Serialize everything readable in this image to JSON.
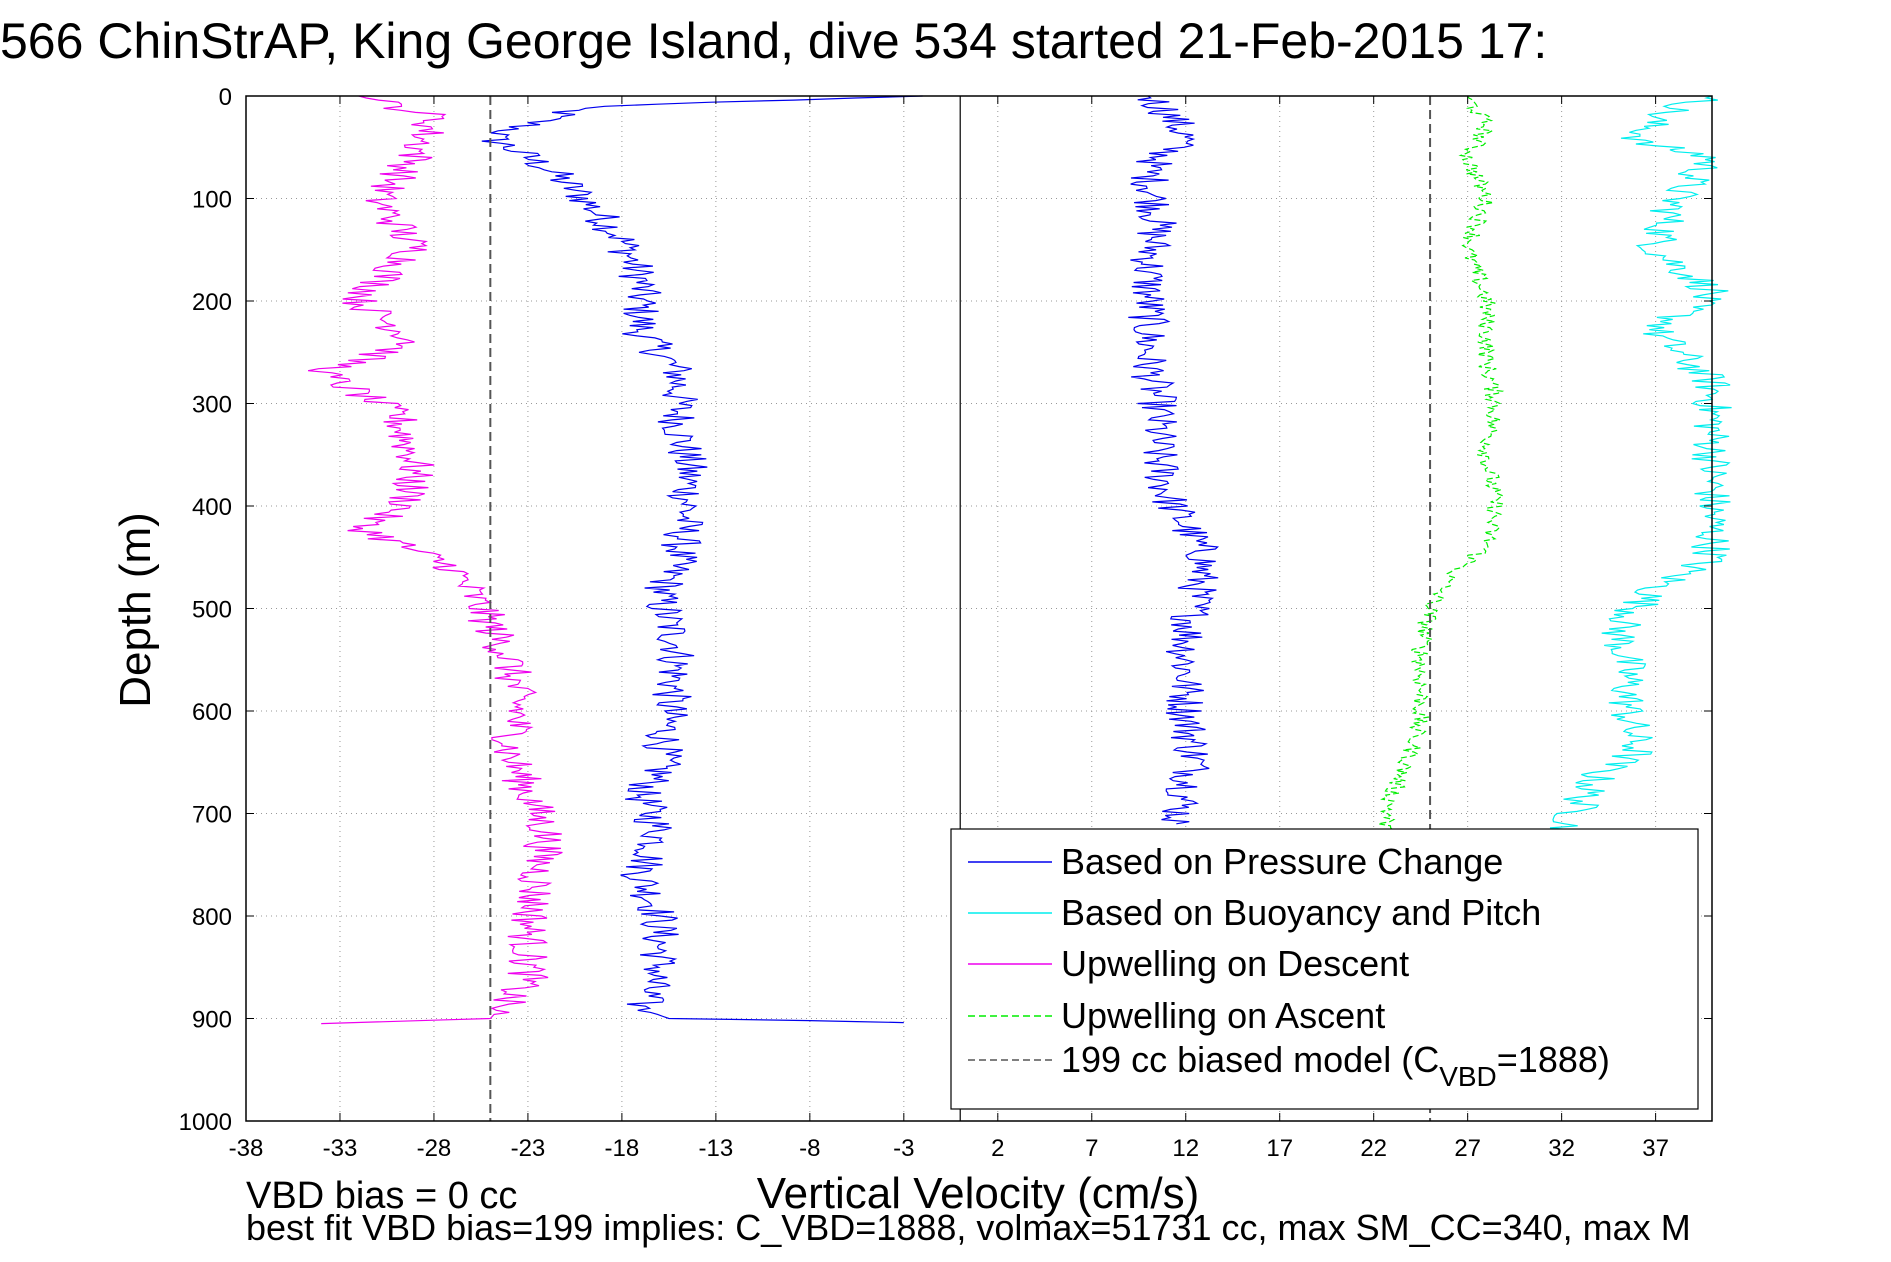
{
  "figure": {
    "title": "566 ChinStrAP, King George Island, dive 534 started 21-Feb-2015 17:",
    "footer_line1": "VBD bias = 0 cc",
    "footer_line2": "best fit VBD bias=199 implies: C_VBD=1888, volmax=51731 cc, max SM_CC=340, max M"
  },
  "chart_data": {
    "type": "line",
    "title": "566 ChinStrAP, King George Island, dive 534 started 21-Feb-2015 17:",
    "xlabel": "Vertical Velocity (cm/s)",
    "ylabel": "Depth (m)",
    "xlim": [
      -38,
      40
    ],
    "ylim": [
      1000,
      0
    ],
    "y_reversed": true,
    "grid": "dotted",
    "legend_position": "bottom-right",
    "xticks": [
      -38,
      -33,
      -28,
      -23,
      -18,
      -13,
      -8,
      -3,
      2,
      7,
      12,
      17,
      22,
      27,
      32,
      37
    ],
    "yticks": [
      0,
      100,
      200,
      300,
      400,
      500,
      600,
      700,
      800,
      900,
      1000
    ],
    "zero_line_x": 0,
    "series": [
      {
        "name": "Based on Pressure Change",
        "color": "#0000ee",
        "style": "solid",
        "profiles": [
          [
            [
              -2,
              0
            ],
            [
              -20,
              10
            ],
            [
              -25,
              40
            ],
            [
              -22,
              70
            ],
            [
              -20,
              100
            ],
            [
              -18,
              140
            ],
            [
              -17,
              180
            ],
            [
              -17,
              230
            ],
            [
              -15,
              270
            ],
            [
              -15,
              320
            ],
            [
              -14.5,
              360
            ],
            [
              -14.5,
              400
            ],
            [
              -15,
              450
            ],
            [
              -16,
              490
            ],
            [
              -15,
              540
            ],
            [
              -15.5,
              600
            ],
            [
              -16,
              660
            ],
            [
              -17,
              680
            ],
            [
              -16,
              720
            ],
            [
              -17,
              760
            ],
            [
              -16,
              800
            ],
            [
              -16,
              850
            ],
            [
              -17,
              890
            ],
            [
              -15.5,
              900
            ],
            [
              -8,
              902
            ],
            [
              -3,
              904
            ]
          ],
          [
            [
              10,
              0
            ],
            [
              11,
              15
            ],
            [
              12,
              40
            ],
            [
              10,
              70
            ],
            [
              10.5,
              120
            ],
            [
              10,
              170
            ],
            [
              10,
              220
            ],
            [
              10,
              260
            ],
            [
              10.5,
              300
            ],
            [
              10.5,
              350
            ],
            [
              11,
              390
            ],
            [
              12,
              420
            ],
            [
              13,
              450
            ],
            [
              12.5,
              490
            ],
            [
              12,
              540
            ],
            [
              12,
              600
            ],
            [
              12.5,
              650
            ],
            [
              12,
              680
            ],
            [
              11.5,
              710
            ]
          ]
        ]
      },
      {
        "name": "Based on Buoyancy and Pitch",
        "color": "#00eeee",
        "style": "solid",
        "profiles": [
          [
            [
              40,
              0
            ],
            [
              37,
              20
            ],
            [
              36,
              45
            ],
            [
              40,
              60
            ],
            [
              38,
              100
            ],
            [
              37,
              150
            ],
            [
              40,
              190
            ],
            [
              37,
              230
            ],
            [
              40,
              280
            ],
            [
              40,
              450
            ],
            [
              37,
              480
            ],
            [
              35,
              520
            ],
            [
              35.5,
              560
            ],
            [
              35.5,
              600
            ],
            [
              36,
              640
            ],
            [
              34,
              660
            ],
            [
              33,
              690
            ],
            [
              32,
              720
            ]
          ]
        ]
      },
      {
        "name": "Upwelling on Descent",
        "color": "#ee00ee",
        "style": "solid",
        "profiles": [
          [
            [
              -32,
              0
            ],
            [
              -28,
              20
            ],
            [
              -29,
              60
            ],
            [
              -31,
              100
            ],
            [
              -29,
              150
            ],
            [
              -32,
              200
            ],
            [
              -29,
              240
            ],
            [
              -34,
              270
            ],
            [
              -30,
              310
            ],
            [
              -29,
              360
            ],
            [
              -29.5,
              400
            ],
            [
              -32,
              420
            ],
            [
              -27,
              460
            ],
            [
              -25.5,
              500
            ],
            [
              -24,
              550
            ],
            [
              -23.5,
              600
            ],
            [
              -24,
              640
            ],
            [
              -23,
              680
            ],
            [
              -22,
              720
            ],
            [
              -22.5,
              760
            ],
            [
              -23,
              820
            ],
            [
              -23,
              860
            ],
            [
              -25,
              900
            ],
            [
              -34,
              905
            ]
          ]
        ]
      },
      {
        "name": "Upwelling on Ascent",
        "color": "#00ee00",
        "style": "dashed",
        "profiles": [
          [
            [
              27,
              0
            ],
            [
              28,
              30
            ],
            [
              27,
              60
            ],
            [
              28,
              100
            ],
            [
              27,
              150
            ],
            [
              28,
              200
            ],
            [
              28,
              260
            ],
            [
              28.5,
              300
            ],
            [
              28,
              350
            ],
            [
              28.5,
              400
            ],
            [
              28,
              440
            ],
            [
              26,
              470
            ],
            [
              25,
              500
            ],
            [
              24.5,
              540
            ],
            [
              24.5,
              600
            ],
            [
              24,
              640
            ],
            [
              23,
              680
            ],
            [
              22.5,
              720
            ]
          ]
        ]
      },
      {
        "name": "199 cc biased model (C_VBD=1888)",
        "label_main": "199 cc biased model (C",
        "label_sub": "VBD",
        "label_tail": "=1888)",
        "color": "#555555",
        "style": "dashed",
        "profiles": [
          [
            [
              -25,
              0
            ],
            [
              -25,
              1000
            ]
          ],
          [
            [
              25,
              0
            ],
            [
              25,
              1000
            ]
          ]
        ]
      }
    ]
  }
}
